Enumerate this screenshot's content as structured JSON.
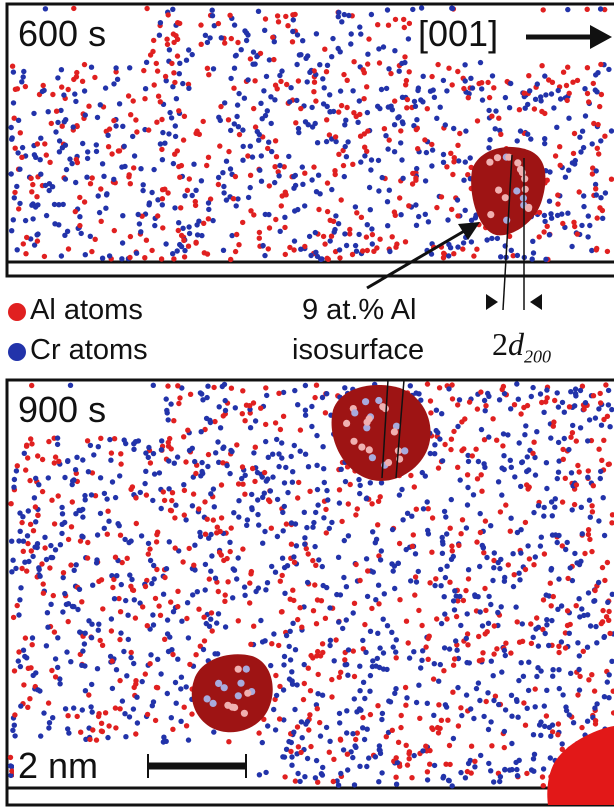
{
  "top_panel": {
    "label": "600 s",
    "direction_label": "[001]"
  },
  "bottom_panel": {
    "label": "900 s",
    "scale_bar_label": "2 nm"
  },
  "legend": [
    {
      "label": "Al atoms",
      "color": "#e02020"
    },
    {
      "label": "Cr atoms",
      "color": "#2233aa"
    }
  ],
  "annotations": {
    "isosurface_line1": "9 at.% Al",
    "isosurface_line2": "isosurface",
    "spacing_prefix": "2",
    "spacing_symbol": "d",
    "spacing_subscript": "200"
  },
  "colors": {
    "precipitate": "#9e1414",
    "precipitate_bright": "#e21818",
    "al_atom": "#e02020",
    "cr_atom": "#2233aa",
    "atom_on_precipitate": "#f0b0b0",
    "cr_on_precipitate": "#a8aadd"
  }
}
